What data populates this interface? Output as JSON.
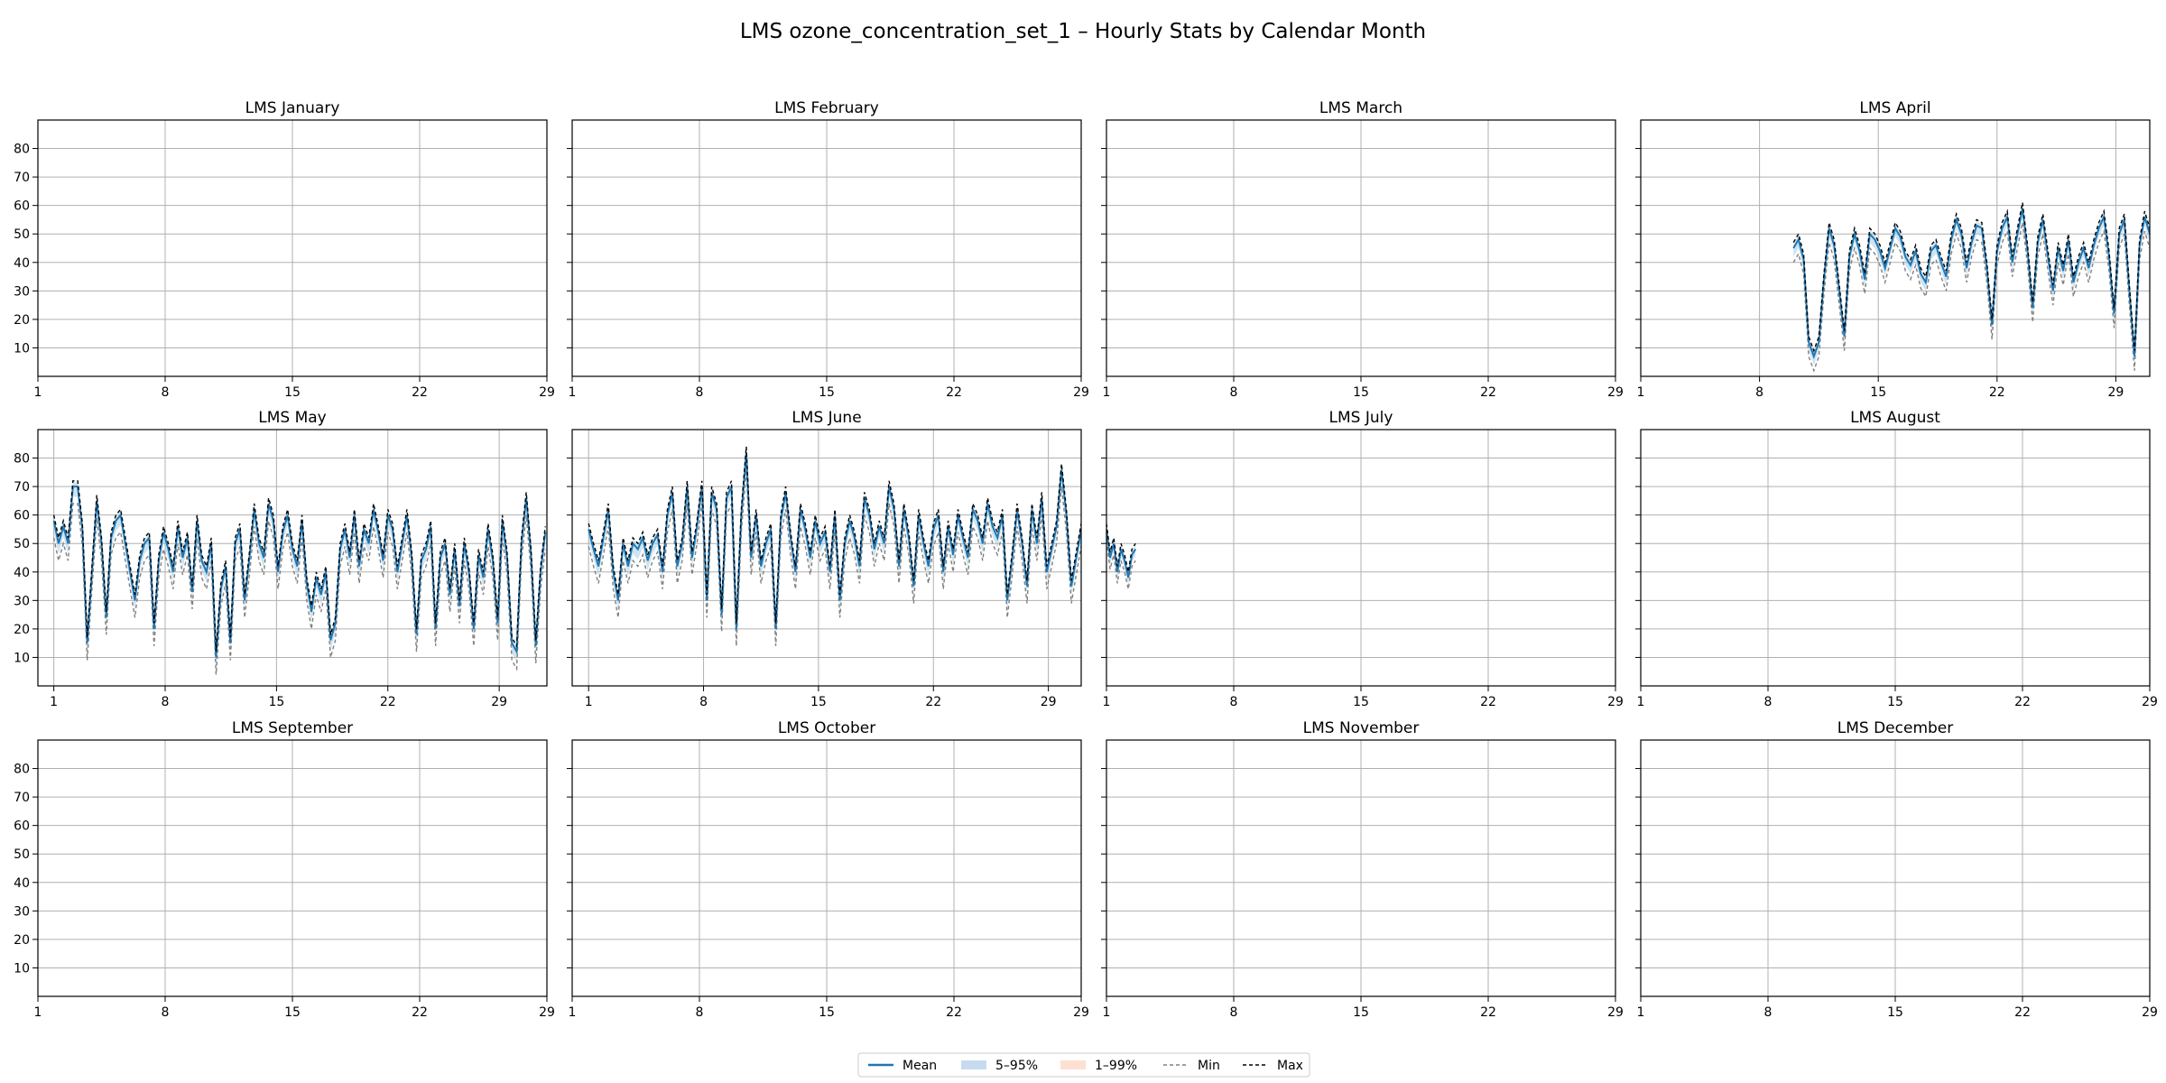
{
  "chart_data": {
    "type": "line",
    "title": "LMS ozone_concentration_set_1 – Hourly Stats by Calendar Month",
    "layout": "3x4 small multiples, shared y axis",
    "x_ticks": [
      1,
      8,
      15,
      22,
      29
    ],
    "xlim": [
      1,
      29
    ],
    "y_ticks": [
      10,
      20,
      30,
      40,
      50,
      60,
      70,
      80
    ],
    "ylim": [
      0,
      90
    ],
    "grid": true,
    "legend": {
      "placement": "bottom-center",
      "entries": [
        {
          "label": "Mean",
          "style": "line",
          "color": "#1f77b4"
        },
        {
          "label": "5–95%",
          "style": "band",
          "color": "#c6dbef"
        },
        {
          "label": "1–99%",
          "style": "band",
          "color": "#fde0d2"
        },
        {
          "label": "Min",
          "style": "dashed",
          "color": "#808080"
        },
        {
          "label": "Max",
          "style": "dashed",
          "color": "#000000"
        }
      ]
    },
    "panels": [
      {
        "title": "LMS January",
        "series": []
      },
      {
        "title": "LMS February",
        "series": []
      },
      {
        "title": "LMS March",
        "series": []
      },
      {
        "title": "LMS April",
        "xlim": [
          1,
          31
        ],
        "mean": [
          [
            10.0,
            45
          ],
          [
            10.3,
            48
          ],
          [
            10.6,
            41
          ],
          [
            10.9,
            12
          ],
          [
            11.2,
            7
          ],
          [
            11.5,
            12
          ],
          [
            11.8,
            34
          ],
          [
            12.1,
            52
          ],
          [
            12.4,
            46
          ],
          [
            12.7,
            30
          ],
          [
            13.0,
            14
          ],
          [
            13.3,
            42
          ],
          [
            13.6,
            50
          ],
          [
            13.9,
            44
          ],
          [
            14.2,
            34
          ],
          [
            14.5,
            50
          ],
          [
            14.8,
            48
          ],
          [
            15.1,
            44
          ],
          [
            15.4,
            38
          ],
          [
            15.7,
            45
          ],
          [
            16.0,
            52
          ],
          [
            16.3,
            49
          ],
          [
            16.6,
            42
          ],
          [
            16.9,
            39
          ],
          [
            17.2,
            44
          ],
          [
            17.5,
            36
          ],
          [
            17.8,
            33
          ],
          [
            18.1,
            44
          ],
          [
            18.4,
            46
          ],
          [
            18.7,
            40
          ],
          [
            19.0,
            35
          ],
          [
            19.3,
            48
          ],
          [
            19.6,
            55
          ],
          [
            19.9,
            50
          ],
          [
            20.2,
            38
          ],
          [
            20.5,
            47
          ],
          [
            20.8,
            53
          ],
          [
            21.1,
            52
          ],
          [
            21.4,
            38
          ],
          [
            21.7,
            18
          ],
          [
            22.0,
            44
          ],
          [
            22.3,
            52
          ],
          [
            22.6,
            56
          ],
          [
            22.9,
            40
          ],
          [
            23.2,
            50
          ],
          [
            23.5,
            59
          ],
          [
            23.8,
            44
          ],
          [
            24.1,
            24
          ],
          [
            24.4,
            47
          ],
          [
            24.7,
            55
          ],
          [
            25.0,
            42
          ],
          [
            25.3,
            30
          ],
          [
            25.6,
            45
          ],
          [
            25.9,
            37
          ],
          [
            26.2,
            48
          ],
          [
            26.5,
            33
          ],
          [
            26.8,
            40
          ],
          [
            27.1,
            45
          ],
          [
            27.4,
            38
          ],
          [
            27.7,
            46
          ],
          [
            28.0,
            52
          ],
          [
            28.3,
            56
          ],
          [
            28.6,
            42
          ],
          [
            28.9,
            22
          ],
          [
            29.2,
            50
          ],
          [
            29.5,
            55
          ],
          [
            29.8,
            30
          ],
          [
            30.1,
            7
          ],
          [
            30.4,
            46
          ],
          [
            30.7,
            56
          ],
          [
            31.0,
            50
          ],
          [
            31.3,
            43
          ],
          [
            31.6,
            50
          ],
          [
            31.9,
            58
          ],
          [
            32.1,
            64
          ]
        ],
        "min_offset": 5,
        "max_offset": 2
      },
      {
        "title": "LMS May",
        "xlim": [
          0,
          32
        ],
        "mean": [
          [
            1.0,
            58
          ],
          [
            1.3,
            50
          ],
          [
            1.6,
            56
          ],
          [
            1.9,
            50
          ],
          [
            2.2,
            70
          ],
          [
            2.5,
            70
          ],
          [
            2.8,
            55
          ],
          [
            3.1,
            15
          ],
          [
            3.4,
            40
          ],
          [
            3.7,
            65
          ],
          [
            4.0,
            50
          ],
          [
            4.3,
            24
          ],
          [
            4.6,
            52
          ],
          [
            4.9,
            58
          ],
          [
            5.2,
            60
          ],
          [
            5.5,
            50
          ],
          [
            5.8,
            40
          ],
          [
            6.1,
            30
          ],
          [
            6.4,
            44
          ],
          [
            6.7,
            50
          ],
          [
            7.0,
            52
          ],
          [
            7.3,
            20
          ],
          [
            7.6,
            44
          ],
          [
            7.9,
            54
          ],
          [
            8.2,
            48
          ],
          [
            8.5,
            40
          ],
          [
            8.8,
            56
          ],
          [
            9.1,
            45
          ],
          [
            9.4,
            52
          ],
          [
            9.7,
            33
          ],
          [
            10.0,
            58
          ],
          [
            10.3,
            44
          ],
          [
            10.6,
            40
          ],
          [
            10.9,
            50
          ],
          [
            11.2,
            10
          ],
          [
            11.5,
            34
          ],
          [
            11.8,
            42
          ],
          [
            12.1,
            15
          ],
          [
            12.4,
            50
          ],
          [
            12.7,
            55
          ],
          [
            13.0,
            30
          ],
          [
            13.3,
            45
          ],
          [
            13.6,
            62
          ],
          [
            13.9,
            50
          ],
          [
            14.2,
            45
          ],
          [
            14.5,
            64
          ],
          [
            14.8,
            58
          ],
          [
            15.1,
            40
          ],
          [
            15.4,
            54
          ],
          [
            15.7,
            60
          ],
          [
            16.0,
            48
          ],
          [
            16.3,
            42
          ],
          [
            16.6,
            58
          ],
          [
            16.9,
            36
          ],
          [
            17.2,
            26
          ],
          [
            17.5,
            38
          ],
          [
            17.8,
            32
          ],
          [
            18.1,
            40
          ],
          [
            18.4,
            16
          ],
          [
            18.7,
            22
          ],
          [
            19.0,
            48
          ],
          [
            19.3,
            55
          ],
          [
            19.6,
            45
          ],
          [
            19.9,
            60
          ],
          [
            20.2,
            42
          ],
          [
            20.5,
            55
          ],
          [
            20.8,
            50
          ],
          [
            21.1,
            62
          ],
          [
            21.4,
            54
          ],
          [
            21.7,
            44
          ],
          [
            22.0,
            60
          ],
          [
            22.3,
            55
          ],
          [
            22.6,
            40
          ],
          [
            22.9,
            50
          ],
          [
            23.2,
            60
          ],
          [
            23.5,
            45
          ],
          [
            23.8,
            18
          ],
          [
            24.1,
            44
          ],
          [
            24.4,
            48
          ],
          [
            24.7,
            56
          ],
          [
            25.0,
            20
          ],
          [
            25.3,
            45
          ],
          [
            25.6,
            50
          ],
          [
            25.9,
            32
          ],
          [
            26.2,
            48
          ],
          [
            26.5,
            28
          ],
          [
            26.8,
            50
          ],
          [
            27.1,
            40
          ],
          [
            27.4,
            20
          ],
          [
            27.7,
            46
          ],
          [
            28.0,
            38
          ],
          [
            28.3,
            55
          ],
          [
            28.6,
            44
          ],
          [
            28.9,
            22
          ],
          [
            29.2,
            58
          ],
          [
            29.5,
            45
          ],
          [
            29.8,
            15
          ],
          [
            30.1,
            12
          ],
          [
            30.4,
            50
          ],
          [
            30.7,
            66
          ],
          [
            31.0,
            46
          ],
          [
            31.3,
            14
          ],
          [
            31.6,
            40
          ],
          [
            31.9,
            54
          ]
        ],
        "min_offset": 6,
        "max_offset": 2
      },
      {
        "title": "LMS June",
        "xlim": [
          0,
          31
        ],
        "mean": [
          [
            1.0,
            55
          ],
          [
            1.3,
            48
          ],
          [
            1.6,
            42
          ],
          [
            1.9,
            52
          ],
          [
            2.2,
            62
          ],
          [
            2.5,
            40
          ],
          [
            2.8,
            30
          ],
          [
            3.1,
            50
          ],
          [
            3.4,
            42
          ],
          [
            3.7,
            50
          ],
          [
            4.0,
            48
          ],
          [
            4.3,
            52
          ],
          [
            4.6,
            44
          ],
          [
            4.9,
            50
          ],
          [
            5.2,
            53
          ],
          [
            5.5,
            40
          ],
          [
            5.8,
            60
          ],
          [
            6.1,
            68
          ],
          [
            6.4,
            42
          ],
          [
            6.7,
            50
          ],
          [
            7.0,
            70
          ],
          [
            7.3,
            45
          ],
          [
            7.6,
            56
          ],
          [
            7.9,
            70
          ],
          [
            8.2,
            30
          ],
          [
            8.5,
            68
          ],
          [
            8.8,
            62
          ],
          [
            9.1,
            25
          ],
          [
            9.4,
            66
          ],
          [
            9.7,
            70
          ],
          [
            10.0,
            20
          ],
          [
            10.3,
            60
          ],
          [
            10.6,
            82
          ],
          [
            10.9,
            45
          ],
          [
            11.2,
            60
          ],
          [
            11.5,
            42
          ],
          [
            11.8,
            50
          ],
          [
            12.1,
            55
          ],
          [
            12.4,
            20
          ],
          [
            12.7,
            58
          ],
          [
            13.0,
            68
          ],
          [
            13.3,
            52
          ],
          [
            13.6,
            40
          ],
          [
            13.9,
            62
          ],
          [
            14.2,
            55
          ],
          [
            14.5,
            45
          ],
          [
            14.8,
            58
          ],
          [
            15.1,
            50
          ],
          [
            15.4,
            54
          ],
          [
            15.7,
            40
          ],
          [
            16.0,
            60
          ],
          [
            16.3,
            30
          ],
          [
            16.6,
            50
          ],
          [
            16.9,
            58
          ],
          [
            17.2,
            52
          ],
          [
            17.5,
            42
          ],
          [
            17.8,
            66
          ],
          [
            18.1,
            60
          ],
          [
            18.4,
            48
          ],
          [
            18.7,
            56
          ],
          [
            19.0,
            50
          ],
          [
            19.3,
            70
          ],
          [
            19.6,
            62
          ],
          [
            19.9,
            42
          ],
          [
            20.2,
            62
          ],
          [
            20.5,
            52
          ],
          [
            20.8,
            35
          ],
          [
            21.1,
            60
          ],
          [
            21.4,
            50
          ],
          [
            21.7,
            42
          ],
          [
            22.0,
            55
          ],
          [
            22.3,
            60
          ],
          [
            22.6,
            40
          ],
          [
            22.9,
            56
          ],
          [
            23.2,
            46
          ],
          [
            23.5,
            60
          ],
          [
            23.8,
            52
          ],
          [
            24.1,
            45
          ],
          [
            24.4,
            62
          ],
          [
            24.7,
            58
          ],
          [
            25.0,
            50
          ],
          [
            25.3,
            64
          ],
          [
            25.6,
            56
          ],
          [
            25.9,
            52
          ],
          [
            26.2,
            60
          ],
          [
            26.5,
            30
          ],
          [
            26.8,
            45
          ],
          [
            27.1,
            62
          ],
          [
            27.4,
            50
          ],
          [
            27.7,
            35
          ],
          [
            28.0,
            62
          ],
          [
            28.3,
            50
          ],
          [
            28.6,
            66
          ],
          [
            28.9,
            40
          ],
          [
            29.2,
            48
          ],
          [
            29.5,
            56
          ],
          [
            29.8,
            76
          ],
          [
            30.1,
            60
          ],
          [
            30.4,
            35
          ],
          [
            30.7,
            45
          ],
          [
            31.0,
            55
          ],
          [
            31.3,
            58
          ]
        ],
        "min_offset": 6,
        "max_offset": 2
      },
      {
        "title": "LMS July",
        "xlim": [
          1,
          29
        ],
        "mean": [
          [
            1.0,
            55
          ],
          [
            1.2,
            45
          ],
          [
            1.4,
            50
          ],
          [
            1.6,
            40
          ],
          [
            1.8,
            48
          ],
          [
            2.0,
            44
          ],
          [
            2.2,
            38
          ],
          [
            2.4,
            46
          ],
          [
            2.6,
            48
          ]
        ],
        "min_offset": 4,
        "max_offset": 2
      },
      {
        "title": "LMS August",
        "series": []
      },
      {
        "title": "LMS September",
        "series": []
      },
      {
        "title": "LMS October",
        "series": []
      },
      {
        "title": "LMS November",
        "series": []
      },
      {
        "title": "LMS December",
        "series": []
      }
    ]
  }
}
